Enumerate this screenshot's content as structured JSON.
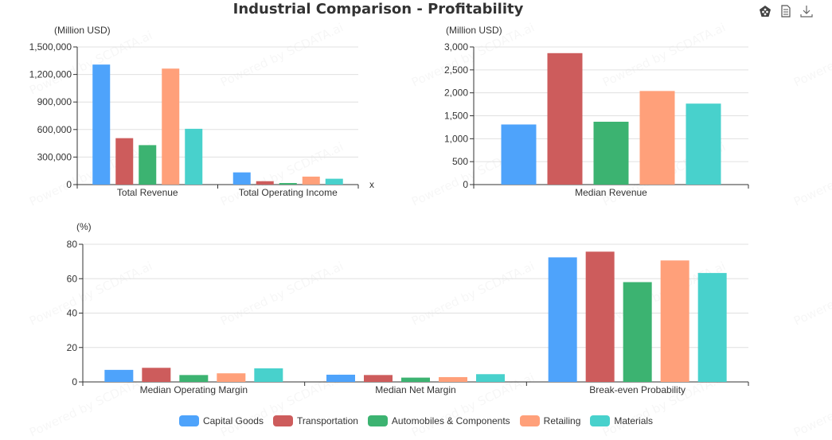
{
  "title": "Industrial Comparison - Profitability",
  "toolbox": {
    "icons": [
      "radar-chart-icon",
      "data-view-icon",
      "download-icon"
    ]
  },
  "watermark": "Powered by SCDATA.ai",
  "colors": {
    "Capital Goods": "#4ea3fb",
    "Transportation": "#cd5c5c",
    "Automobiles & Components": "#3cb371",
    "Retailing": "#ffa07a",
    "Materials": "#48d1cc"
  },
  "legend": [
    {
      "label": "Capital Goods",
      "color": "#4ea3fb"
    },
    {
      "label": "Transportation",
      "color": "#cd5c5c"
    },
    {
      "label": "Automobiles & Components",
      "color": "#3cb371"
    },
    {
      "label": "Retailing",
      "color": "#ffa07a"
    },
    {
      "label": "Materials",
      "color": "#48d1cc"
    }
  ],
  "chart_data": [
    {
      "type": "bar",
      "id": "totals",
      "ylabel": "(Million USD)",
      "xlabel": "x",
      "ylim": [
        0,
        1500000
      ],
      "yticks": [
        0,
        300000,
        600000,
        900000,
        1200000,
        1500000
      ],
      "ytick_labels": [
        "0",
        "300,000",
        "600,000",
        "900,000",
        "1,200,000",
        "1,500,000"
      ],
      "categories": [
        "Total Revenue",
        "Total Operating Income"
      ],
      "grid": true,
      "series": [
        {
          "name": "Capital Goods",
          "values": [
            1308000,
            133000
          ]
        },
        {
          "name": "Transportation",
          "values": [
            506000,
            37000
          ]
        },
        {
          "name": "Automobiles & Components",
          "values": [
            430000,
            17000
          ]
        },
        {
          "name": "Retailing",
          "values": [
            1264000,
            87000
          ]
        },
        {
          "name": "Materials",
          "values": [
            608000,
            64000
          ]
        }
      ]
    },
    {
      "type": "bar",
      "id": "median-revenue",
      "ylabel": "(Million USD)",
      "xlabel": "",
      "ylim": [
        0,
        3000
      ],
      "yticks": [
        0,
        500,
        1000,
        1500,
        2000,
        2500,
        3000
      ],
      "ytick_labels": [
        "0",
        "500",
        "1,000",
        "1,500",
        "2,000",
        "2,500",
        "3,000"
      ],
      "categories": [
        "Median Revenue"
      ],
      "grid": true,
      "series": [
        {
          "name": "Capital Goods",
          "values": [
            1310
          ]
        },
        {
          "name": "Transportation",
          "values": [
            2865
          ]
        },
        {
          "name": "Automobiles & Components",
          "values": [
            1370
          ]
        },
        {
          "name": "Retailing",
          "values": [
            2040
          ]
        },
        {
          "name": "Materials",
          "values": [
            1765
          ]
        }
      ]
    },
    {
      "type": "bar",
      "id": "percentages",
      "ylabel": "(%)",
      "xlabel": "",
      "ylim": [
        0,
        80
      ],
      "yticks": [
        0,
        20,
        40,
        60,
        80
      ],
      "ytick_labels": [
        "0",
        "20",
        "40",
        "60",
        "80"
      ],
      "categories": [
        "Median Operating Margin",
        "Median Net Margin",
        "Break-even Probability"
      ],
      "grid": true,
      "series": [
        {
          "name": "Capital Goods",
          "values": [
            7.0,
            4.2,
            72.4
          ]
        },
        {
          "name": "Transportation",
          "values": [
            8.2,
            4.0,
            75.7
          ]
        },
        {
          "name": "Automobiles & Components",
          "values": [
            4.0,
            2.5,
            58.0
          ]
        },
        {
          "name": "Retailing",
          "values": [
            5.0,
            2.8,
            70.6
          ]
        },
        {
          "name": "Materials",
          "values": [
            7.9,
            4.5,
            63.3
          ]
        }
      ]
    }
  ]
}
